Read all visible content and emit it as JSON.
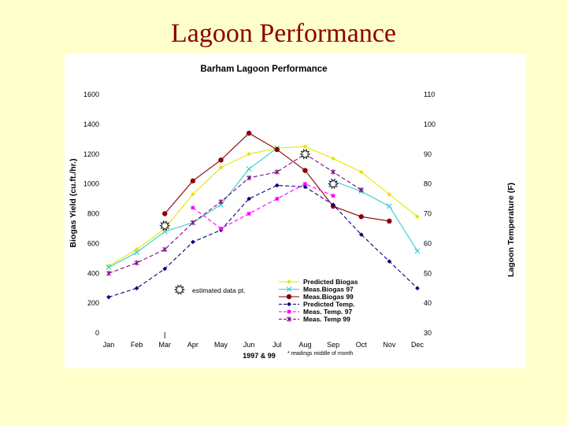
{
  "slide": {
    "title": "Lagoon Performance"
  },
  "chart_data": {
    "type": "line",
    "title": "Barham Lagoon Performance",
    "xlabel": "",
    "ylabel_left": "Biogas Yield (cu.ft./hr.)",
    "ylabel_right": "Lagoon Temperature (F)",
    "categories": [
      "Jan",
      "Feb",
      "Mar",
      "Apr",
      "May",
      "Jun",
      "Jul",
      "Aug",
      "Sep",
      "Oct",
      "Nov",
      "Dec"
    ],
    "ylim_left": [
      0,
      1600
    ],
    "ylim_right": [
      30,
      110
    ],
    "yticks_left": [
      0,
      200,
      400,
      600,
      800,
      1000,
      1200,
      1400,
      1600
    ],
    "yticks_right": [
      30,
      40,
      50,
      60,
      70,
      80,
      90,
      100,
      110
    ],
    "legend_position": "bottom-right",
    "series": [
      {
        "name": "Predicted Biogas",
        "axis": "left",
        "color": "#e6e600",
        "line": "solid",
        "marker": "diamond",
        "values": [
          450,
          560,
          700,
          930,
          1110,
          1200,
          1240,
          1250,
          1170,
          1080,
          930,
          780
        ]
      },
      {
        "name": "Meas.Biogas 97",
        "axis": "left",
        "color": "#33cccc",
        "line": "solid",
        "marker": "x",
        "values": [
          440,
          540,
          680,
          740,
          860,
          1100,
          1240,
          null,
          1020,
          950,
          850,
          550
        ]
      },
      {
        "name": "Meas.Biogas 99",
        "axis": "left",
        "color": "#8b0000",
        "line": "solid",
        "marker": "circle",
        "values": [
          null,
          null,
          800,
          1020,
          1160,
          1340,
          1230,
          1090,
          850,
          780,
          750,
          null
        ]
      },
      {
        "name": "Predicted Temp.",
        "axis": "right",
        "color": "#000080",
        "line": "dashed",
        "marker": "diamond",
        "values": [
          42,
          45,
          51.5,
          60.5,
          64.5,
          75,
          79.5,
          79,
          73,
          63,
          54,
          45
        ]
      },
      {
        "name": "Meas. Temp. 97",
        "axis": "right",
        "color": "#ff00ff",
        "line": "dashed",
        "marker": "square",
        "values": [
          null,
          null,
          null,
          72,
          65,
          70,
          75,
          80,
          76,
          null,
          null,
          null
        ]
      },
      {
        "name": "Meas. Temp 99",
        "axis": "right",
        "color": "#800080",
        "line": "dashed",
        "marker": "star",
        "values": [
          50,
          53.5,
          58,
          67,
          74,
          82,
          84,
          90,
          84,
          78,
          null,
          null
        ]
      }
    ],
    "estimated_points": [
      {
        "x": "Mar",
        "y_right": 66
      },
      {
        "x": "Aug",
        "y_right": 90
      },
      {
        "x": "Sep",
        "y_right": 80
      }
    ],
    "annotations": {
      "estimated_label": "estimated data pt.",
      "xaxis_note_left": "1997 & 99",
      "xaxis_note_right": "* readings middle of month"
    }
  }
}
